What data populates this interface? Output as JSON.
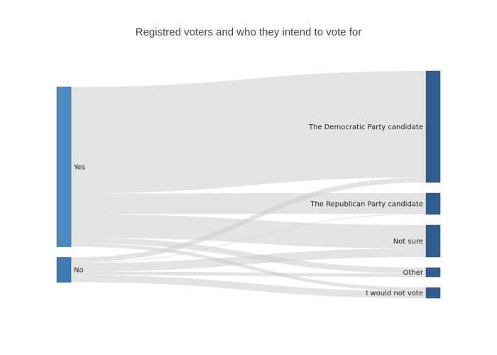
{
  "chart_data": {
    "type": "sankey",
    "title": "Registred voters and who they intend to vote for",
    "nodes": [
      {
        "id": "yes",
        "label": "Yes",
        "side": "source",
        "color": "#4a8bc2"
      },
      {
        "id": "no",
        "label": "No",
        "side": "source",
        "color": "#3f7bb3"
      },
      {
        "id": "dem",
        "label": "The Democratic Party candidate",
        "side": "target",
        "color": "#2e5f90"
      },
      {
        "id": "rep",
        "label": "The Republican Party candidate",
        "side": "target",
        "color": "#2e5f90"
      },
      {
        "id": "notsure",
        "label": "Not sure",
        "side": "target",
        "color": "#2e5f90"
      },
      {
        "id": "other",
        "label": "Other",
        "side": "target",
        "color": "#2e5f90"
      },
      {
        "id": "novote",
        "label": "I would not vote",
        "side": "target",
        "color": "#2e5f90"
      }
    ],
    "links": [
      {
        "source": "yes",
        "target": "dem",
        "value": 150
      },
      {
        "source": "yes",
        "target": "rep",
        "value": 29
      },
      {
        "source": "yes",
        "target": "notsure",
        "value": 33
      },
      {
        "source": "yes",
        "target": "other",
        "value": 8
      },
      {
        "source": "yes",
        "target": "novote",
        "value": 5
      },
      {
        "source": "no",
        "target": "dem",
        "value": 7
      },
      {
        "source": "no",
        "target": "rep",
        "value": 1
      },
      {
        "source": "no",
        "target": "notsure",
        "value": 12
      },
      {
        "source": "no",
        "target": "other",
        "value": 5
      },
      {
        "source": "no",
        "target": "novote",
        "value": 10
      }
    ],
    "link_color": "#cccccc",
    "node_border_color": "#444444"
  }
}
